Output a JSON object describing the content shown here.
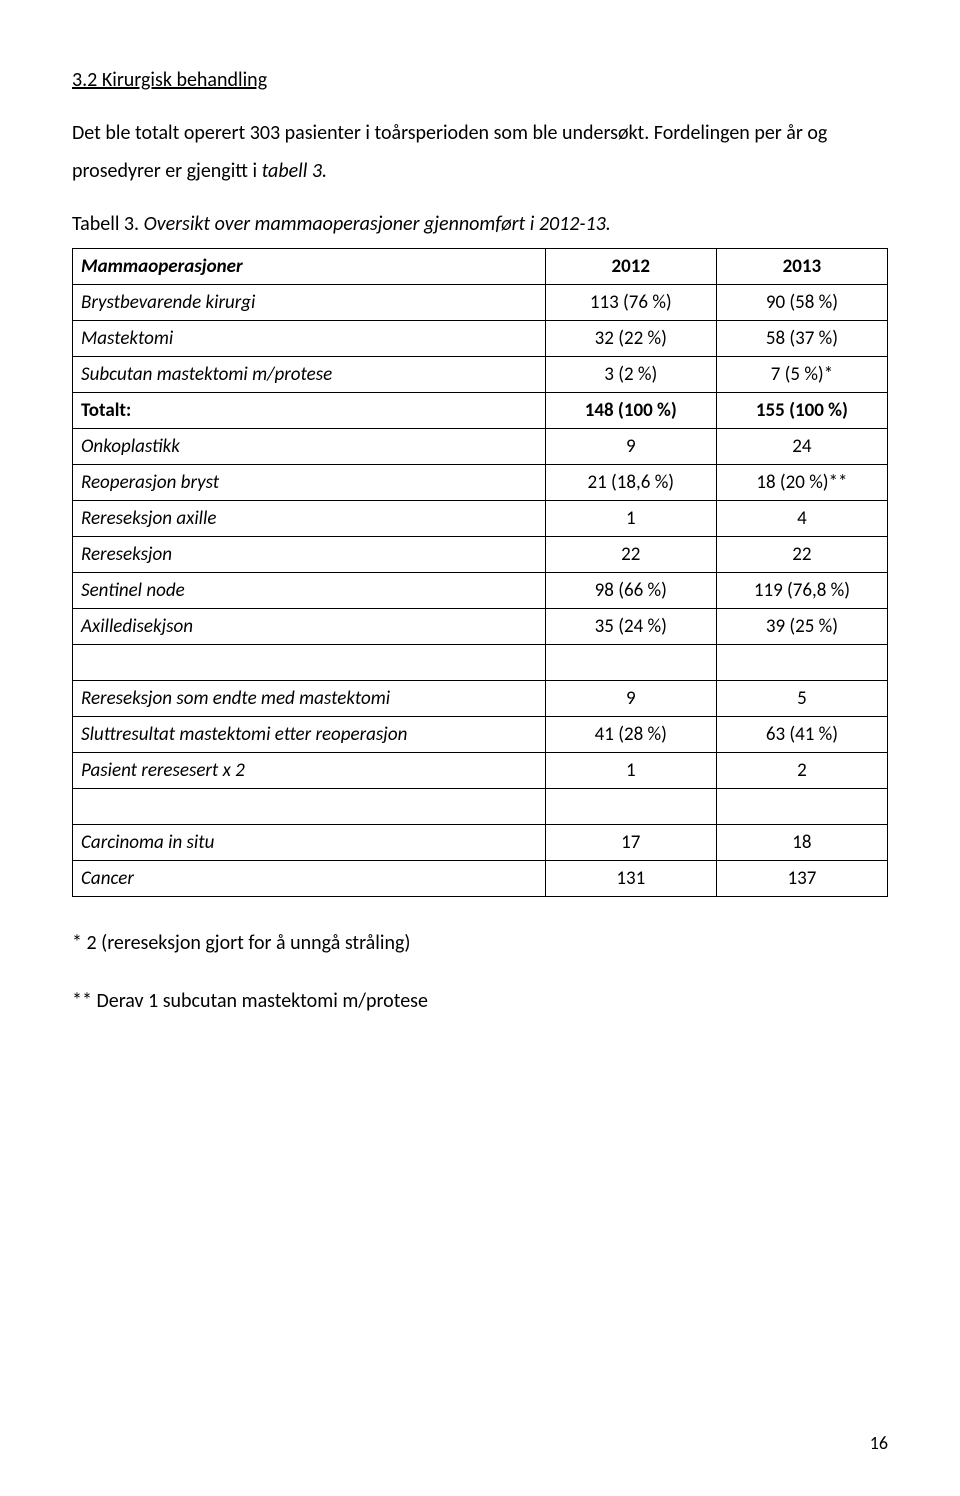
{
  "heading": "3.2 Kirurgisk behandling",
  "para_parts": {
    "a": "Det ble totalt operert 303 pasienter i toårsperioden som ble undersøkt. Fordelingen per år og prosedyrer er gjengitt i ",
    "b": "tabell 3.",
    "c": ""
  },
  "caption_parts": {
    "a": "Tabell 3.",
    "b": " Oversikt over mammaoperasjoner gjennomført i 2012-13."
  },
  "table": {
    "border_color": "#000000",
    "font_size": 19,
    "columns": [
      "Mammaoperasjoner",
      "2012",
      "2013"
    ],
    "col_widths_pct": [
      58,
      21,
      21
    ],
    "rows": [
      {
        "label": "Brystbevarende kirurgi",
        "c2": "113 (76 %)",
        "c3": "90 (58 %)",
        "label_style": "italic"
      },
      {
        "label": "Mastektomi",
        "c2": "32 (22 %)",
        "c3": "58 (37 %)",
        "label_style": "italic"
      },
      {
        "label": "Subcutan mastektomi m/protese",
        "c2": "3 (2 %)",
        "c3": "7 (5 %)*",
        "label_style": "italic"
      },
      {
        "label": "Totalt:",
        "c2": "148 (100 %)",
        "c3": "155 (100 %)",
        "label_style": "bold",
        "num_style": "bold"
      },
      {
        "label": "Onkoplastikk",
        "c2": "9",
        "c3": "24",
        "label_style": "italic"
      },
      {
        "label": "Reoperasjon bryst",
        "c2": "21 (18,6 %)",
        "c3": "18 (20 %)**",
        "label_style": "italic"
      },
      {
        "label": "Rereseksjon axille",
        "c2": "1",
        "c3": "4",
        "label_style": "italic"
      },
      {
        "label": "Rereseksjon",
        "c2": "22",
        "c3": "22",
        "label_style": "italic"
      },
      {
        "label": "Sentinel node",
        "c2": "98 (66 %)",
        "c3": "119 (76,8 %)",
        "label_style": "italic"
      },
      {
        "label": "Axilledisekjson",
        "c2": "35 (24 %)",
        "c3": "39 (25 %)",
        "label_style": "italic"
      },
      {
        "label": "",
        "c2": "",
        "c3": "",
        "empty": true
      },
      {
        "label": "Rereseksjon som endte med mastektomi",
        "c2": "9",
        "c3": "5",
        "label_style": "italic"
      },
      {
        "label": "Sluttresultat mastektomi etter reoperasjon",
        "c2": "41 (28 %)",
        "c3": "63 (41 %)",
        "label_style": "italic"
      },
      {
        "label": "Pasient reresesert x 2",
        "c2": "1",
        "c3": "2",
        "label_style": "italic"
      },
      {
        "label": "",
        "c2": "",
        "c3": "",
        "empty": true
      },
      {
        "label": "Carcinoma in situ",
        "c2": "17",
        "c3": "18",
        "label_style": "italic"
      },
      {
        "label": "Cancer",
        "c2": "131",
        "c3": "137",
        "label_style": "italic"
      }
    ]
  },
  "note1": "* 2 (rereseksjon gjort for å unngå stråling)",
  "note2": "** Derav 1 subcutan mastektomi m/protese",
  "page_number": "16",
  "colors": {
    "text": "#000000",
    "background": "#ffffff",
    "border": "#000000"
  },
  "typography": {
    "body_font_size": 20,
    "table_font_size": 19,
    "font_family": "Calibri"
  }
}
